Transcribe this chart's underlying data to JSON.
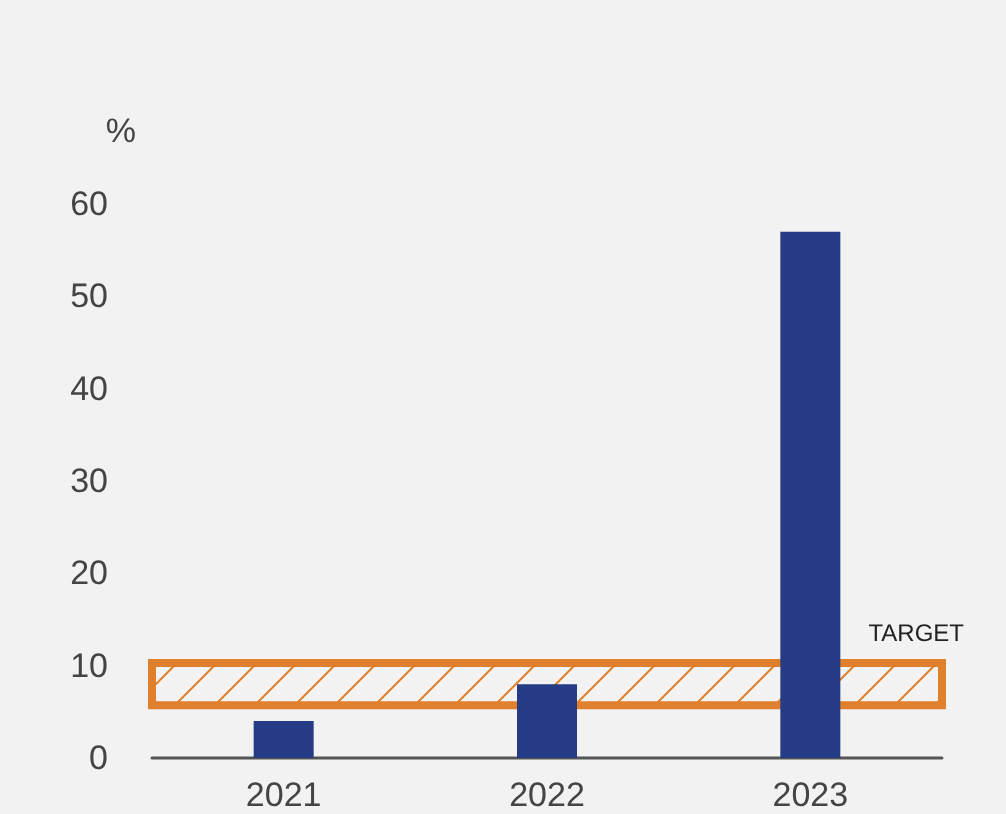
{
  "chart_data": {
    "type": "bar",
    "ylabel": "%",
    "categories": [
      "2021",
      "2022",
      "2023"
    ],
    "values": [
      4,
      8,
      57
    ],
    "color": "#263b85",
    "ylim": [
      0,
      60
    ],
    "yticks": [
      0,
      10,
      20,
      30,
      40,
      50,
      60
    ],
    "grid": false,
    "bands": [
      {
        "axis": "y",
        "from": 5.7,
        "to": 10.3,
        "label": "TARGET",
        "color": "#e07f2c"
      }
    ]
  }
}
